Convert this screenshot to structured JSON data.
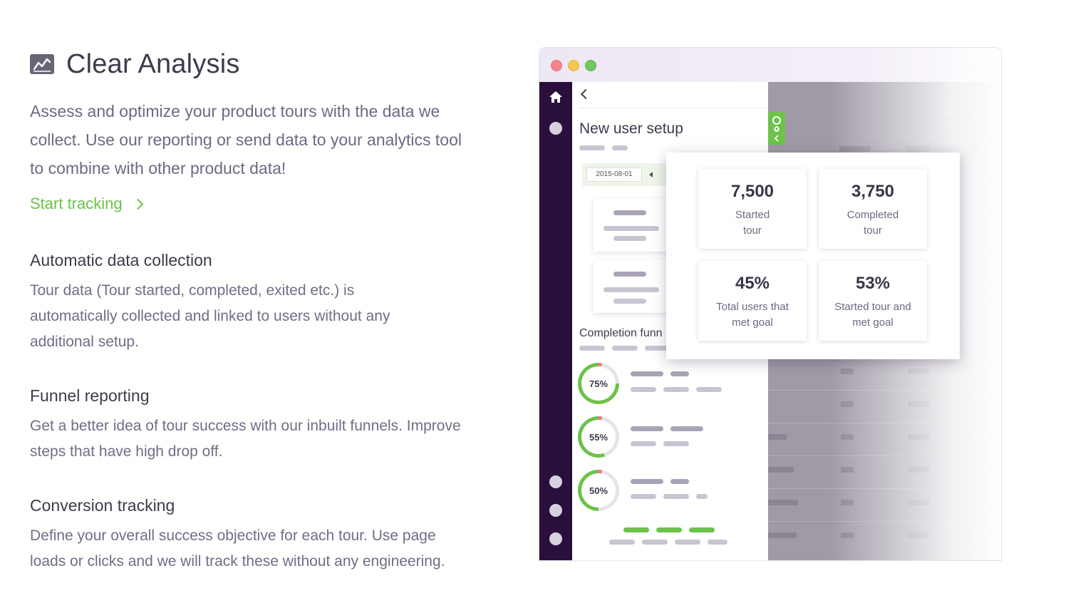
{
  "section": {
    "title": "Clear Analysis",
    "intro": "Assess and optimize your product tours with the data we collect. Use our reporting or send data to your analytics tool to combine with other product data!",
    "cta_label": "Start tracking"
  },
  "features": [
    {
      "title": "Automatic data collection",
      "description": "Tour data (Tour started, completed, exited etc.) is automatically collected and linked to users without any additional setup."
    },
    {
      "title": "Funnel reporting",
      "description": "Get a better idea of tour success with our inbuilt funnels. Improve steps that have high drop off."
    },
    {
      "title": "Conversion tracking",
      "description": "Define your overall success objective for each tour. Use page loads or clicks and we will track these without any engineering."
    }
  ],
  "app": {
    "panel_title": "New user setup",
    "date": "2015-08-01",
    "funnel_title": "Completion funn",
    "funnel_rings": [
      {
        "label": "75%",
        "value": 75
      },
      {
        "label": "55%",
        "value": 55
      },
      {
        "label": "50%",
        "value": 50
      }
    ],
    "stats": [
      {
        "value": "7,500",
        "label": "Started tour"
      },
      {
        "value": "3,750",
        "label": "Completed tour"
      },
      {
        "value": "45%",
        "label": "Total users that met goal"
      },
      {
        "value": "53%",
        "label": "Started tour and met goal"
      }
    ],
    "colors": {
      "brand_purple": "#2a0f3c",
      "accent_green": "#6cc24a",
      "ring_red": "#f07a7a"
    }
  }
}
